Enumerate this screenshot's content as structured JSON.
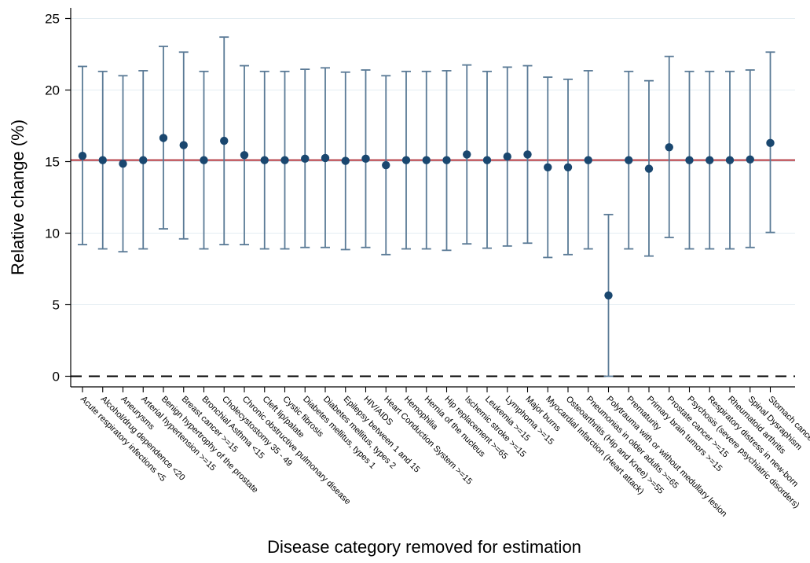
{
  "chart_data": {
    "type": "scatter",
    "title": "",
    "xlabel": "Disease category removed for estimation",
    "ylabel": "Relative change (%)",
    "ylim": [
      0,
      25
    ],
    "yticks": [
      "0",
      "5",
      "10",
      "15",
      "20",
      "25"
    ],
    "grid": true,
    "reference_line": 15.1,
    "zero_line": 0,
    "colors": {
      "marker": "#1a476f",
      "errorbar": "#5a7a96",
      "reference": "#b2343c",
      "grid": "#e3edf2",
      "zero": "#000000"
    },
    "categories": [
      "Acute respiratory infections <5",
      "Alcohol/drug dependence <20",
      "Aneurysms",
      "Arterial hypertension >=15",
      "Benign hypertrophy of the prostate",
      "Breast cancer >=15",
      "Bronchial Asthma <15",
      "Cholecystostomy 35 - 49",
      "Chronic obstructive pulmonary disease",
      "Cleft lip/palate",
      "Cystic fibrosis",
      "Diabetes mellitus, types 1",
      "Diabetes mellitus, types 2",
      "Epilepsy between 1 and 15",
      "HIV/AIDS",
      "Heart Conduction System >=15",
      "Hemophilia",
      "Hernia of the nucleus",
      "Hip replacement >=65",
      "Ischemic stroke >=15",
      "Leukemia >=15",
      "Lymphoma >=15",
      "Major burns",
      "Myocardial Infarction (Heart attack)",
      "Osteoarthritis (Hip and Knee) >=55",
      "Pneumonias in older adults >=65",
      "Polytrauma with or without medullary lesion",
      "Prematurity",
      "Primary brain tumors >=15",
      "Prostate cancer >=15",
      "Psychosis (severe psychiatric disorders)",
      "Respiratory distress in new-born",
      "Rheumatoid arthritis",
      "Spinal Dysraphism",
      "Stomach cancer"
    ],
    "estimates": [
      15.4,
      15.1,
      14.85,
      15.1,
      16.65,
      16.15,
      15.1,
      16.45,
      15.45,
      15.1,
      15.1,
      15.2,
      15.25,
      15.05,
      15.2,
      14.75,
      15.1,
      15.1,
      15.1,
      15.5,
      15.1,
      15.35,
      15.5,
      14.6,
      14.6,
      15.1,
      5.65,
      15.1,
      14.5,
      16.0,
      15.1,
      15.1,
      15.1,
      15.15,
      16.3
    ],
    "lower": [
      9.2,
      8.9,
      8.7,
      8.9,
      10.3,
      9.6,
      8.9,
      9.2,
      9.2,
      8.9,
      8.9,
      9.0,
      9.0,
      8.85,
      9.0,
      8.5,
      8.9,
      8.9,
      8.8,
      9.25,
      8.95,
      9.1,
      9.3,
      8.3,
      8.5,
      8.9,
      0.0,
      8.9,
      8.4,
      9.7,
      8.9,
      8.9,
      8.9,
      9.0,
      10.05
    ],
    "upper": [
      21.65,
      21.3,
      21.0,
      21.35,
      23.05,
      22.65,
      21.3,
      23.7,
      21.7,
      21.3,
      21.3,
      21.45,
      21.55,
      21.25,
      21.4,
      21.0,
      21.3,
      21.3,
      21.35,
      21.75,
      21.3,
      21.6,
      21.7,
      20.9,
      20.75,
      21.35,
      11.3,
      21.3,
      20.65,
      22.35,
      21.3,
      21.3,
      21.3,
      21.4,
      22.65
    ]
  }
}
